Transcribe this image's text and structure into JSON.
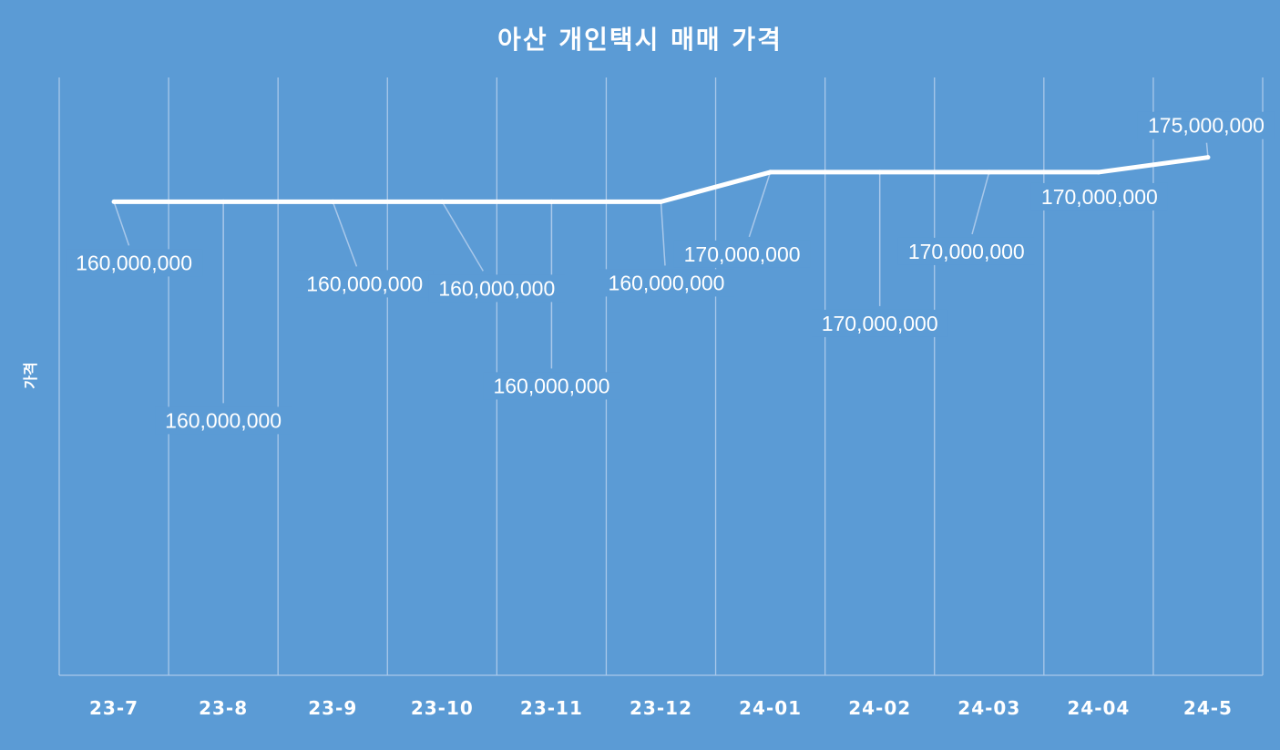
{
  "chart_data": {
    "type": "line",
    "title": "아산 개인택시 매매 가격",
    "xlabel": "",
    "ylabel": "가격",
    "categories": [
      "23-7",
      "23-8",
      "23-9",
      "23-10",
      "23-11",
      "23-12",
      "24-01",
      "24-02",
      "24-03",
      "24-04",
      "24-5"
    ],
    "series": [
      {
        "values": [
          160000000,
          160000000,
          160000000,
          160000000,
          160000000,
          160000000,
          170000000,
          170000000,
          170000000,
          170000000,
          175000000
        ],
        "labels": [
          "160,000,000",
          "160,000,000",
          "160,000,000",
          "160,000,000",
          "160,000,000",
          "160,000,000",
          "170,000,000",
          "170,000,000",
          "170,000,000",
          "170,000,000",
          "175,000,000"
        ]
      }
    ],
    "grid": true,
    "legend": "none",
    "colors": {
      "background": "#5b9bd5",
      "line": "#ffffff",
      "grid": "#a9c8ea"
    }
  }
}
